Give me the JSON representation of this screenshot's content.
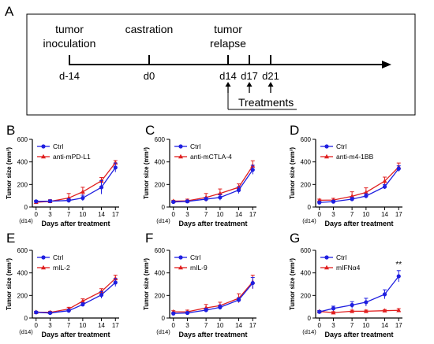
{
  "panel_a": {
    "letter": "A",
    "event_top_labels": [
      [
        "tumor",
        "inoculation"
      ],
      [
        "castration"
      ],
      [
        "tumor",
        "relapse"
      ]
    ],
    "day_labels": [
      "d-14",
      "d0",
      "d14",
      "d17",
      "d21"
    ],
    "treatments_label": "Treatments"
  },
  "colors": {
    "ctrl": "#1f1fe0",
    "treatment": "#e01f1f",
    "axis": "#000000"
  },
  "chart_data": [
    {
      "panel": "B",
      "type": "line",
      "x": [
        0,
        3,
        7,
        10,
        14,
        17
      ],
      "x_tick_labels": [
        "0",
        "3",
        "7",
        "10",
        "14",
        "17"
      ],
      "x_note": "(d14)",
      "xlabel": "Days after treatment",
      "ylabel": "Tumor size (mm³)",
      "ylim": [
        0,
        600
      ],
      "yticks": [
        0,
        200,
        400,
        600
      ],
      "legend": "top-left",
      "grid": false,
      "series": [
        {
          "name": "Ctrl",
          "marker": "circle",
          "values": [
            50,
            52,
            58,
            80,
            175,
            350
          ],
          "err": [
            8,
            10,
            15,
            25,
            60,
            40
          ]
        },
        {
          "name": "anti-mPD-L1",
          "marker": "triangle",
          "values": [
            42,
            50,
            80,
            135,
            232,
            392
          ],
          "err": [
            8,
            15,
            40,
            40,
            30,
            20
          ]
        }
      ]
    },
    {
      "panel": "C",
      "type": "line",
      "x": [
        0,
        3,
        7,
        10,
        14,
        17
      ],
      "x_tick_labels": [
        "0",
        "3",
        "7",
        "10",
        "14",
        "17"
      ],
      "x_note": "(d14)",
      "xlabel": "Days after treatment",
      "ylabel": "Tumor size (mm³)",
      "ylim": [
        0,
        600
      ],
      "yticks": [
        0,
        200,
        400,
        600
      ],
      "legend": "top-left",
      "grid": false,
      "series": [
        {
          "name": "Ctrl",
          "marker": "circle",
          "values": [
            45,
            50,
            70,
            85,
            150,
            330
          ],
          "err": [
            8,
            10,
            15,
            25,
            30,
            40
          ]
        },
        {
          "name": "anti-mCTLA-4",
          "marker": "triangle",
          "values": [
            52,
            55,
            85,
            120,
            175,
            365
          ],
          "err": [
            8,
            15,
            35,
            40,
            30,
            45
          ]
        }
      ]
    },
    {
      "panel": "D",
      "type": "line",
      "x": [
        0,
        3,
        7,
        10,
        14,
        17
      ],
      "x_tick_labels": [
        "0",
        "3",
        "7",
        "10",
        "14",
        "17"
      ],
      "x_note": "(d14)",
      "xlabel": "Days after treatment",
      "ylabel": "Tumor size (mm³)",
      "ylim": [
        0,
        600
      ],
      "yticks": [
        0,
        200,
        400,
        600
      ],
      "legend": "top-left",
      "grid": false,
      "series": [
        {
          "name": "Ctrl",
          "marker": "circle",
          "values": [
            40,
            48,
            70,
            98,
            180,
            340
          ],
          "err": [
            8,
            10,
            15,
            20,
            20,
            25
          ]
        },
        {
          "name": "anti-m4-1BB",
          "marker": "triangle",
          "values": [
            60,
            62,
            95,
            130,
            230,
            355
          ],
          "err": [
            10,
            15,
            40,
            40,
            35,
            35
          ]
        }
      ]
    },
    {
      "panel": "E",
      "type": "line",
      "x": [
        0,
        3,
        7,
        10,
        14,
        17
      ],
      "x_tick_labels": [
        "0",
        "3",
        "7",
        "10",
        "14",
        "17"
      ],
      "x_note": "(d14)",
      "xlabel": "Days after treatment",
      "ylabel": "Tumor size (mm³)",
      "ylim": [
        0,
        600
      ],
      "yticks": [
        0,
        200,
        400,
        600
      ],
      "legend": "top-left",
      "grid": false,
      "series": [
        {
          "name": "Ctrl",
          "marker": "circle",
          "values": [
            50,
            45,
            65,
            120,
            205,
            315
          ],
          "err": [
            8,
            8,
            10,
            15,
            30,
            35
          ]
        },
        {
          "name": "mIL-2",
          "marker": "triangle",
          "values": [
            52,
            50,
            80,
            150,
            235,
            350
          ],
          "err": [
            8,
            10,
            15,
            20,
            25,
            30
          ]
        }
      ]
    },
    {
      "panel": "F",
      "type": "line",
      "x": [
        0,
        3,
        7,
        10,
        14,
        17
      ],
      "x_tick_labels": [
        "0",
        "3",
        "7",
        "10",
        "14",
        "17"
      ],
      "x_note": "(d14)",
      "xlabel": "Days after treatment",
      "ylabel": "Tumor size (mm³)",
      "ylim": [
        0,
        600
      ],
      "yticks": [
        0,
        200,
        400,
        600
      ],
      "legend": "top-left",
      "grid": false,
      "series": [
        {
          "name": "Ctrl",
          "marker": "circle",
          "values": [
            40,
            45,
            70,
            95,
            160,
            310
          ],
          "err": [
            8,
            10,
            15,
            20,
            20,
            50
          ]
        },
        {
          "name": "mIL-9",
          "marker": "triangle",
          "values": [
            55,
            55,
            90,
            110,
            175,
            320
          ],
          "err": [
            10,
            15,
            30,
            30,
            40,
            60
          ]
        }
      ]
    },
    {
      "panel": "G",
      "type": "line",
      "x": [
        0,
        3,
        7,
        10,
        14,
        17
      ],
      "x_tick_labels": [
        "0",
        "3",
        "7",
        "10",
        "14",
        "17"
      ],
      "x_note": "(d14)",
      "xlabel": "Days after treatment",
      "ylabel": "Tumor size (mm³)",
      "ylim": [
        0,
        600
      ],
      "yticks": [
        0,
        200,
        400,
        600
      ],
      "legend": "top-left",
      "grid": false,
      "annotations": [
        {
          "text": "**",
          "x": 17,
          "y": 455
        }
      ],
      "series": [
        {
          "name": "Ctrl",
          "marker": "circle",
          "values": [
            55,
            85,
            115,
            140,
            210,
            370
          ],
          "err": [
            10,
            20,
            30,
            35,
            40,
            50
          ]
        },
        {
          "name": "mIFNα4",
          "marker": "triangle",
          "values": [
            58,
            48,
            60,
            60,
            65,
            68
          ],
          "err": [
            8,
            8,
            10,
            10,
            10,
            15
          ]
        }
      ]
    }
  ]
}
